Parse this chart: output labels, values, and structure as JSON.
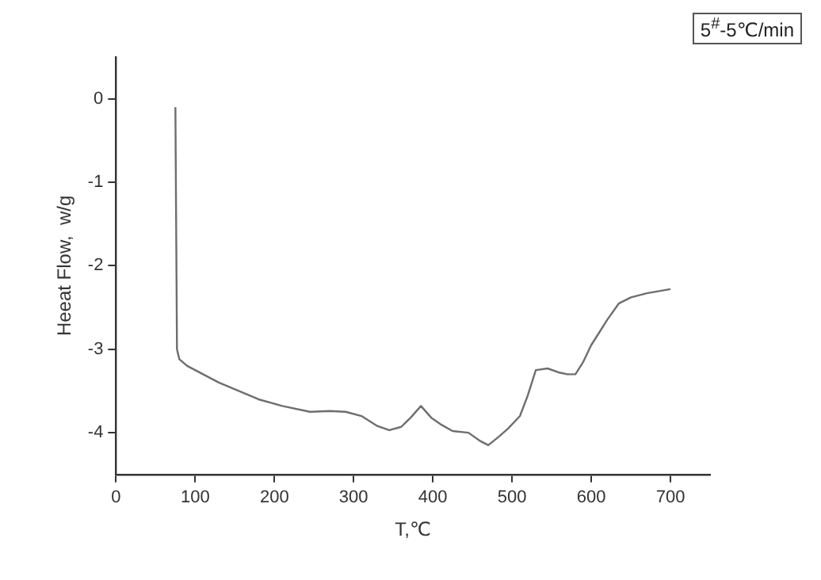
{
  "chart_data": {
    "type": "line",
    "xlabel": "T,℃",
    "ylabel": "Heeat Flow,  w/g",
    "annotations": [
      "5$^{#}$-5℃/min"
    ],
    "x": [
      75,
      77,
      80,
      90,
      110,
      130,
      155,
      180,
      210,
      245,
      270,
      290,
      310,
      330,
      345,
      360,
      372,
      385,
      398,
      410,
      425,
      445,
      460,
      470,
      483,
      495,
      510,
      520,
      530,
      545,
      560,
      570,
      580,
      590,
      600,
      620,
      635,
      650,
      670,
      700
    ],
    "series": [
      {
        "color": "#6e6e6e",
        "values": [
          -0.1,
          -3.0,
          -3.12,
          -3.2,
          -3.3,
          -3.4,
          -3.5,
          -3.6,
          -3.68,
          -3.75,
          -3.74,
          -3.75,
          -3.8,
          -3.92,
          -3.97,
          -3.93,
          -3.82,
          -3.68,
          -3.82,
          -3.9,
          -3.98,
          -4.0,
          -4.1,
          -4.15,
          -4.05,
          -3.95,
          -3.8,
          -3.55,
          -3.25,
          -3.23,
          -3.28,
          -3.3,
          -3.3,
          -3.15,
          -2.95,
          -2.65,
          -2.45,
          -2.38,
          -2.33,
          -2.28
        ]
      }
    ],
    "xlim": [
      0,
      750
    ],
    "xticks": [
      0,
      100,
      200,
      300,
      400,
      500,
      600,
      700
    ],
    "ylim": [
      -4.5,
      0.5
    ],
    "yticks": [
      -4,
      -3,
      -2,
      -1,
      0
    ],
    "grid": false,
    "legend": false,
    "marker": "none",
    "line_style": "solid"
  }
}
